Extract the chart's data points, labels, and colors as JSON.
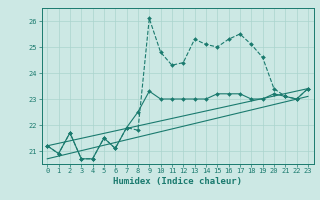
{
  "xlabel": "Humidex (Indice chaleur)",
  "background_color": "#cce8e4",
  "grid_color": "#aad4ce",
  "line_color": "#1a7a6e",
  "xlim": [
    -0.5,
    23.5
  ],
  "ylim": [
    20.5,
    26.5
  ],
  "yticks": [
    21,
    22,
    23,
    24,
    25,
    26
  ],
  "xticks": [
    0,
    1,
    2,
    3,
    4,
    5,
    6,
    7,
    8,
    9,
    10,
    11,
    12,
    13,
    14,
    15,
    16,
    17,
    18,
    19,
    20,
    21,
    22,
    23
  ],
  "line1_x": [
    0,
    1,
    2,
    3,
    4,
    5,
    6,
    7,
    8,
    9,
    10,
    11,
    12,
    13,
    14,
    15,
    16,
    17,
    18,
    19,
    20,
    21,
    22,
    23
  ],
  "line1_y": [
    21.2,
    20.9,
    21.7,
    20.7,
    20.7,
    21.5,
    21.1,
    21.9,
    21.8,
    26.1,
    24.8,
    24.3,
    24.4,
    25.3,
    25.1,
    25.0,
    25.3,
    25.5,
    25.1,
    24.6,
    23.4,
    23.1,
    23.0,
    23.4
  ],
  "line2_x": [
    0,
    1,
    2,
    3,
    4,
    5,
    6,
    7,
    8,
    9,
    10,
    11,
    12,
    13,
    14,
    15,
    16,
    17,
    18,
    19,
    20,
    21,
    22,
    23
  ],
  "line2_y": [
    21.2,
    20.9,
    21.7,
    20.7,
    20.7,
    21.5,
    21.1,
    21.9,
    22.5,
    23.3,
    23.0,
    23.0,
    23.0,
    23.0,
    23.0,
    23.2,
    23.2,
    23.2,
    23.0,
    23.0,
    23.2,
    23.1,
    23.0,
    23.4
  ],
  "line3_x": [
    0,
    23
  ],
  "line3_y": [
    21.2,
    23.4
  ],
  "line4_x": [
    0,
    23
  ],
  "line4_y": [
    20.7,
    23.1
  ]
}
